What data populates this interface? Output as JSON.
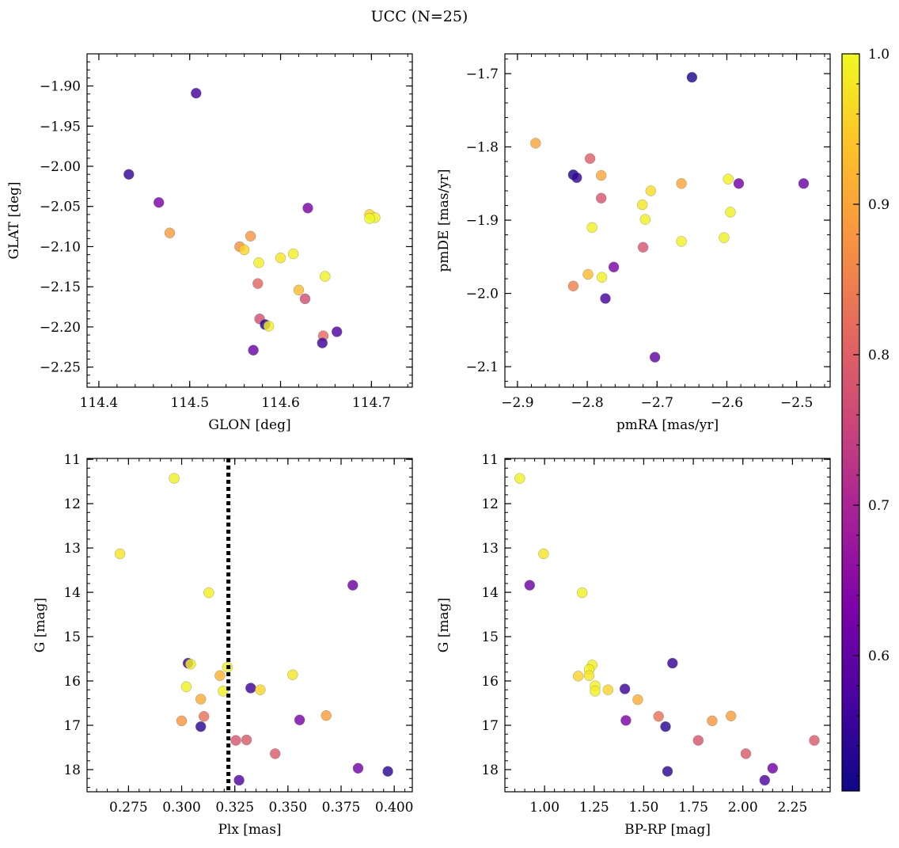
{
  "figure": {
    "title": "UCC (N=25)"
  },
  "colorbar": {
    "vmin": 0.51,
    "vmax": 1.0,
    "ticks": [
      0.6,
      0.7,
      0.8,
      0.9,
      1.0
    ],
    "tick_labels": [
      "0.6",
      "0.7",
      "0.8",
      "0.9",
      "1.0"
    ],
    "colormap": "plasma"
  },
  "chart_data": [
    {
      "type": "scatter",
      "xlabel": "GLON [deg]",
      "ylabel": "GLAT [deg]",
      "xlim": [
        114.387,
        114.745
      ],
      "ylim": [
        -2.275,
        -1.86
      ],
      "xticks": [
        114.4,
        114.5,
        114.6,
        114.7
      ],
      "xtick_labels": [
        "114.4",
        "114.5",
        "114.6",
        "114.7"
      ],
      "yticks": [
        -1.9,
        -1.95,
        -2.0,
        -2.05,
        -2.1,
        -2.15,
        -2.2,
        -2.25
      ],
      "ytick_labels": [
        "−1.90",
        "−1.95",
        "−2.00",
        "−2.05",
        "−2.10",
        "−2.15",
        "−2.20",
        "−2.25"
      ],
      "points": [
        {
          "x": 114.507,
          "y": -1.909,
          "c": 0.57
        },
        {
          "x": 114.433,
          "y": -2.01,
          "c": 0.55
        },
        {
          "x": 114.466,
          "y": -2.045,
          "c": 0.63
        },
        {
          "x": 114.478,
          "y": -2.083,
          "c": 0.89
        },
        {
          "x": 114.63,
          "y": -2.052,
          "c": 0.63
        },
        {
          "x": 114.698,
          "y": -2.06,
          "c": 0.96
        },
        {
          "x": 114.704,
          "y": -2.064,
          "c": 0.99
        },
        {
          "x": 114.698,
          "y": -2.065,
          "c": 1.0
        },
        {
          "x": 114.567,
          "y": -2.087,
          "c": 0.88
        },
        {
          "x": 114.555,
          "y": -2.1,
          "c": 0.87
        },
        {
          "x": 114.56,
          "y": -2.104,
          "c": 0.96
        },
        {
          "x": 114.576,
          "y": -2.12,
          "c": 0.99
        },
        {
          "x": 114.6,
          "y": -2.114,
          "c": 0.98
        },
        {
          "x": 114.614,
          "y": -2.109,
          "c": 0.99
        },
        {
          "x": 114.649,
          "y": -2.137,
          "c": 0.99
        },
        {
          "x": 114.575,
          "y": -2.146,
          "c": 0.81
        },
        {
          "x": 114.62,
          "y": -2.154,
          "c": 0.93
        },
        {
          "x": 114.627,
          "y": -2.165,
          "c": 0.77
        },
        {
          "x": 114.577,
          "y": -2.19,
          "c": 0.77
        },
        {
          "x": 114.583,
          "y": -2.197,
          "c": 0.53
        },
        {
          "x": 114.587,
          "y": -2.199,
          "c": 0.99
        },
        {
          "x": 114.647,
          "y": -2.211,
          "c": 0.82
        },
        {
          "x": 114.662,
          "y": -2.206,
          "c": 0.58
        },
        {
          "x": 114.646,
          "y": -2.22,
          "c": 0.56
        },
        {
          "x": 114.57,
          "y": -2.229,
          "c": 0.61
        }
      ]
    },
    {
      "type": "scatter",
      "xlabel": "pmRA [mas/yr]",
      "ylabel": "pmDE [mas/yr]",
      "xlim": [
        -2.918,
        -2.452
      ],
      "ylim": [
        -2.128,
        -1.673
      ],
      "xticks": [
        -2.9,
        -2.8,
        -2.7,
        -2.6,
        -2.5
      ],
      "xtick_labels": [
        "−2.9",
        "−2.8",
        "−2.7",
        "−2.6",
        "−2.5"
      ],
      "yticks": [
        -1.7,
        -1.8,
        -1.9,
        -2.0,
        -2.1
      ],
      "ytick_labels": [
        "−1.7",
        "−1.8",
        "−1.9",
        "−2.0",
        "−2.1"
      ],
      "points": [
        {
          "x": -2.65,
          "y": -1.705,
          "c": 0.53
        },
        {
          "x": -2.874,
          "y": -1.795,
          "c": 0.9
        },
        {
          "x": -2.82,
          "y": -1.838,
          "c": 0.52
        },
        {
          "x": -2.815,
          "y": -1.842,
          "c": 0.55
        },
        {
          "x": -2.796,
          "y": -1.816,
          "c": 0.8
        },
        {
          "x": -2.78,
          "y": -1.839,
          "c": 0.9
        },
        {
          "x": -2.78,
          "y": -1.87,
          "c": 0.78
        },
        {
          "x": -2.709,
          "y": -1.86,
          "c": 0.97
        },
        {
          "x": -2.665,
          "y": -1.85,
          "c": 0.9
        },
        {
          "x": -2.598,
          "y": -1.844,
          "c": 0.99
        },
        {
          "x": -2.583,
          "y": -1.85,
          "c": 0.62
        },
        {
          "x": -2.49,
          "y": -1.85,
          "c": 0.61
        },
        {
          "x": -2.721,
          "y": -1.879,
          "c": 0.98
        },
        {
          "x": -2.717,
          "y": -1.899,
          "c": 0.99
        },
        {
          "x": -2.595,
          "y": -1.889,
          "c": 0.99
        },
        {
          "x": -2.793,
          "y": -1.91,
          "c": 0.99
        },
        {
          "x": -2.665,
          "y": -1.929,
          "c": 0.99
        },
        {
          "x": -2.604,
          "y": -1.924,
          "c": 0.99
        },
        {
          "x": -2.72,
          "y": -1.937,
          "c": 0.78
        },
        {
          "x": -2.762,
          "y": -1.964,
          "c": 0.63
        },
        {
          "x": -2.799,
          "y": -1.974,
          "c": 0.93
        },
        {
          "x": -2.779,
          "y": -1.978,
          "c": 0.99
        },
        {
          "x": -2.82,
          "y": -1.99,
          "c": 0.85
        },
        {
          "x": -2.774,
          "y": -2.007,
          "c": 0.57
        },
        {
          "x": -2.703,
          "y": -2.087,
          "c": 0.6
        }
      ]
    },
    {
      "type": "scatter",
      "xlabel": "Plx [mas]",
      "ylabel": "G [mag]",
      "xlim": [
        0.2555,
        0.4085
      ],
      "ylim": [
        18.5,
        10.98
      ],
      "y_inverted": true,
      "xticks": [
        0.275,
        0.3,
        0.325,
        0.35,
        0.375,
        0.4
      ],
      "xtick_labels": [
        "0.275",
        "0.300",
        "0.325",
        "0.350",
        "0.375",
        "0.400"
      ],
      "yticks": [
        11,
        12,
        13,
        14,
        15,
        16,
        17,
        18
      ],
      "ytick_labels": [
        "11",
        "12",
        "13",
        "14",
        "15",
        "16",
        "17",
        "18"
      ],
      "vline_x": 0.322,
      "points": [
        {
          "x": 0.2965,
          "y": 11.43,
          "c": 0.99
        },
        {
          "x": 0.271,
          "y": 13.13,
          "c": 0.98
        },
        {
          "x": 0.3128,
          "y": 14.01,
          "c": 0.99
        },
        {
          "x": 0.3805,
          "y": 13.84,
          "c": 0.61
        },
        {
          "x": 0.303,
          "y": 15.6,
          "c": 0.55
        },
        {
          "x": 0.3042,
          "y": 15.62,
          "c": 0.99
        },
        {
          "x": 0.3215,
          "y": 15.69,
          "c": 0.99
        },
        {
          "x": 0.318,
          "y": 15.88,
          "c": 0.92
        },
        {
          "x": 0.3522,
          "y": 15.86,
          "c": 0.98
        },
        {
          "x": 0.3022,
          "y": 16.13,
          "c": 0.99
        },
        {
          "x": 0.3325,
          "y": 16.16,
          "c": 0.56
        },
        {
          "x": 0.337,
          "y": 16.2,
          "c": 0.96
        },
        {
          "x": 0.3195,
          "y": 16.23,
          "c": 0.99
        },
        {
          "x": 0.309,
          "y": 16.41,
          "c": 0.91
        },
        {
          "x": 0.3,
          "y": 16.9,
          "c": 0.88
        },
        {
          "x": 0.3105,
          "y": 16.8,
          "c": 0.83
        },
        {
          "x": 0.3555,
          "y": 16.88,
          "c": 0.63
        },
        {
          "x": 0.368,
          "y": 16.78,
          "c": 0.89
        },
        {
          "x": 0.309,
          "y": 17.03,
          "c": 0.54
        },
        {
          "x": 0.3255,
          "y": 17.34,
          "c": 0.78
        },
        {
          "x": 0.3305,
          "y": 17.33,
          "c": 0.79
        },
        {
          "x": 0.344,
          "y": 17.64,
          "c": 0.79
        },
        {
          "x": 0.383,
          "y": 17.97,
          "c": 0.62
        },
        {
          "x": 0.397,
          "y": 18.04,
          "c": 0.54
        },
        {
          "x": 0.327,
          "y": 18.24,
          "c": 0.58
        }
      ]
    },
    {
      "type": "scatter",
      "xlabel": "BP-RP [mag]",
      "ylabel": "G [mag]",
      "xlim": [
        0.8,
        2.44
      ],
      "ylim": [
        18.5,
        10.98
      ],
      "y_inverted": true,
      "xticks": [
        1.0,
        1.25,
        1.5,
        1.75,
        2.0,
        2.25
      ],
      "xtick_labels": [
        "1.00",
        "1.25",
        "1.50",
        "1.75",
        "2.00",
        "2.25"
      ],
      "yticks": [
        11,
        12,
        13,
        14,
        15,
        16,
        17,
        18
      ],
      "ytick_labels": [
        "11",
        "12",
        "13",
        "14",
        "15",
        "16",
        "17",
        "18"
      ],
      "points": [
        {
          "x": 0.875,
          "y": 11.43,
          "c": 0.99
        },
        {
          "x": 0.995,
          "y": 13.13,
          "c": 0.98
        },
        {
          "x": 0.925,
          "y": 13.84,
          "c": 0.61
        },
        {
          "x": 1.19,
          "y": 14.01,
          "c": 0.99
        },
        {
          "x": 1.645,
          "y": 15.6,
          "c": 0.55
        },
        {
          "x": 1.24,
          "y": 15.64,
          "c": 0.99
        },
        {
          "x": 1.225,
          "y": 15.74,
          "c": 0.99
        },
        {
          "x": 1.225,
          "y": 15.88,
          "c": 0.98
        },
        {
          "x": 1.17,
          "y": 15.89,
          "c": 0.96
        },
        {
          "x": 1.255,
          "y": 16.11,
          "c": 0.99
        },
        {
          "x": 1.255,
          "y": 16.23,
          "c": 0.99
        },
        {
          "x": 1.32,
          "y": 16.2,
          "c": 0.96
        },
        {
          "x": 1.405,
          "y": 16.18,
          "c": 0.56
        },
        {
          "x": 1.47,
          "y": 16.42,
          "c": 0.91
        },
        {
          "x": 1.41,
          "y": 16.89,
          "c": 0.63
        },
        {
          "x": 1.575,
          "y": 16.8,
          "c": 0.83
        },
        {
          "x": 1.845,
          "y": 16.9,
          "c": 0.88
        },
        {
          "x": 1.94,
          "y": 16.79,
          "c": 0.89
        },
        {
          "x": 1.61,
          "y": 17.03,
          "c": 0.54
        },
        {
          "x": 1.775,
          "y": 17.34,
          "c": 0.78
        },
        {
          "x": 2.36,
          "y": 17.34,
          "c": 0.79
        },
        {
          "x": 2.015,
          "y": 17.64,
          "c": 0.79
        },
        {
          "x": 2.15,
          "y": 17.97,
          "c": 0.62
        },
        {
          "x": 1.62,
          "y": 18.04,
          "c": 0.54
        },
        {
          "x": 2.11,
          "y": 18.24,
          "c": 0.58
        }
      ]
    }
  ]
}
